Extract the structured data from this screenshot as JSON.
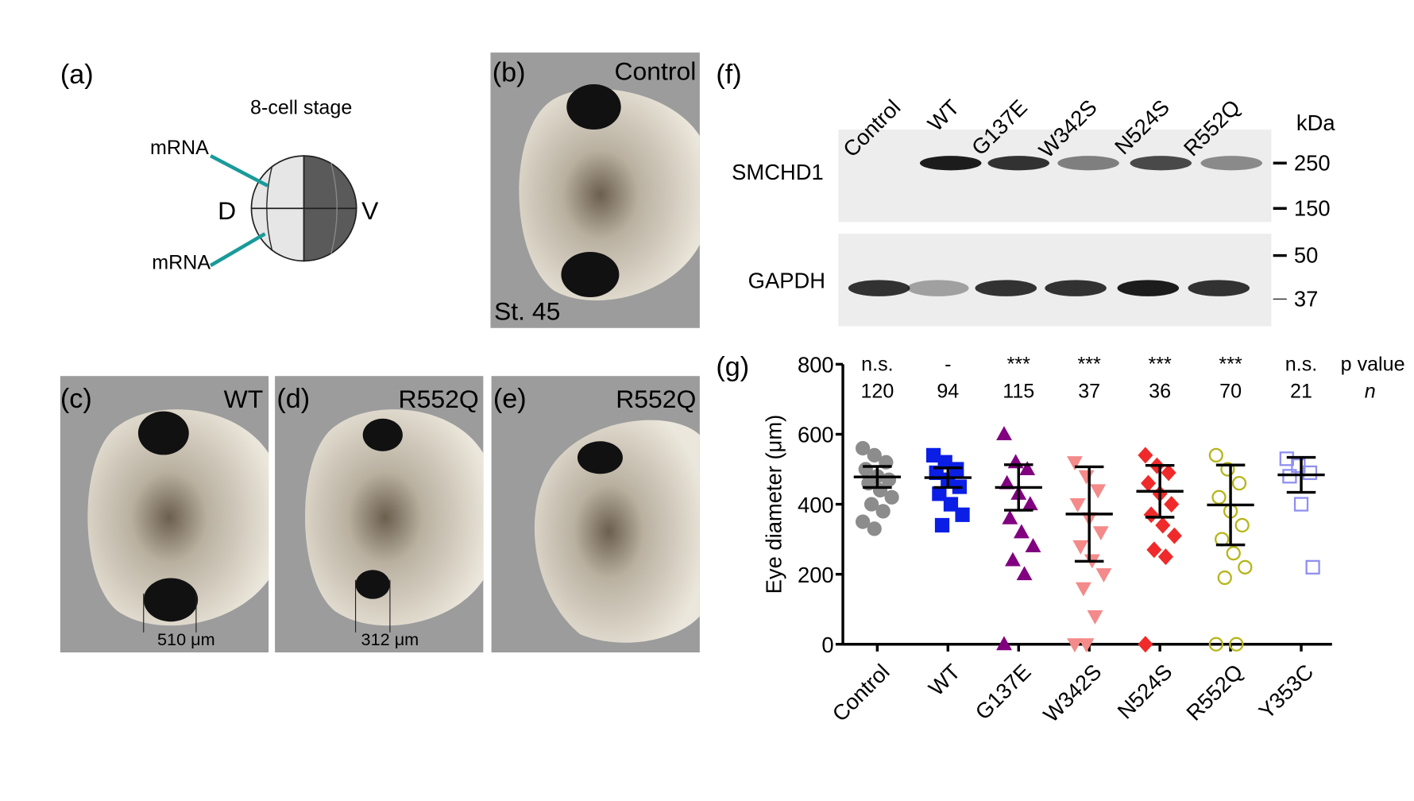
{
  "panel_a": {
    "label": "(a)",
    "title": "8-cell stage",
    "injection_top": "mRNA",
    "injection_bottom": "mRNA",
    "dorsal": "D",
    "ventral": "V"
  },
  "panel_b": {
    "label": "(b)",
    "condition": "Control",
    "stage": "St. 45"
  },
  "panel_c": {
    "label": "(c)",
    "condition": "WT",
    "scale": "510 μm"
  },
  "panel_d": {
    "label": "(d)",
    "condition": "R552Q",
    "scale": "312 μm"
  },
  "panel_e": {
    "label": "(e)",
    "condition": "R552Q"
  },
  "panel_f": {
    "label": "(f)",
    "lanes": [
      "Control",
      "WT",
      "G137E",
      "W342S",
      "N524S",
      "R552Q"
    ],
    "rows": [
      "SMCHD1",
      "GAPDH"
    ],
    "unit": "kDa",
    "markers": [
      250,
      150,
      50,
      37
    ]
  },
  "chart_data": {
    "type": "dot",
    "label": "(g)",
    "y_label": "Eye diameter (μm)",
    "categories": [
      "Control",
      "WT",
      "G137E",
      "W342S",
      "N524S",
      "R552Q",
      "Y353C"
    ],
    "values": [
      478,
      476,
      448,
      372,
      437,
      398,
      484
    ],
    "errors": [
      30,
      28,
      65,
      135,
      74,
      114,
      50
    ],
    "points": [
      [
        560,
        540,
        520,
        500,
        480,
        470,
        460,
        440,
        420,
        400,
        380,
        350,
        330
      ],
      [
        540,
        520,
        500,
        490,
        470,
        450,
        430,
        400,
        370,
        340
      ],
      [
        600,
        520,
        500,
        460,
        430,
        400,
        360,
        320,
        280,
        240,
        200,
        0
      ],
      [
        520,
        480,
        440,
        400,
        360,
        320,
        280,
        240,
        200,
        160,
        80,
        0,
        0
      ],
      [
        540,
        510,
        490,
        460,
        430,
        400,
        370,
        340,
        310,
        270,
        250,
        0
      ],
      [
        540,
        500,
        460,
        420,
        380,
        340,
        300,
        260,
        220,
        190,
        0,
        0
      ],
      [
        530,
        510,
        490,
        480,
        400,
        220
      ]
    ],
    "colors": [
      "#8c8c8c",
      "#0a1ee6",
      "#800080",
      "#f48a8a",
      "#f02a2a",
      "#b5b51a",
      "#8f8ff0"
    ],
    "markers": [
      "circle",
      "square",
      "triangle",
      "triangle-down",
      "diamond",
      "circle-open",
      "square-open"
    ],
    "significance_header": "p value",
    "significance": [
      "n.s.",
      "-",
      "***",
      "***",
      "***",
      "***",
      "n.s."
    ],
    "n_header": "n",
    "n": [
      120,
      94,
      115,
      37,
      36,
      70,
      21
    ],
    "ylim": [
      0,
      800
    ],
    "yticks": [
      0,
      200,
      400,
      600,
      800
    ]
  }
}
